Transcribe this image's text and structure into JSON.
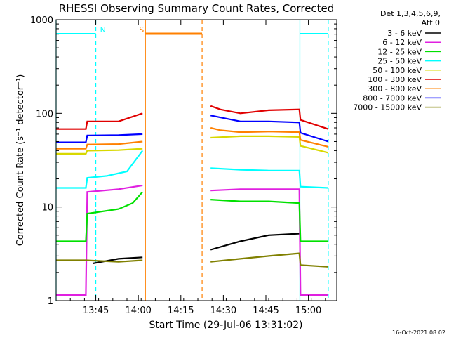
{
  "chart_data": {
    "type": "line",
    "title": "RHESSI Observing Summary Count Rates, Corrected",
    "xlabel": "Start Time (29-Jul-06 13:31:02)",
    "ylabel": "Corrected Count Rate (s⁻¹ detector⁻¹)",
    "x_unit": "minutes after 13:31:02",
    "xlim": [
      "13:31",
      "15:10"
    ],
    "ylim": [
      1,
      1000
    ],
    "y_scale": "log",
    "x_ticks": [
      "13:45",
      "14:00",
      "14:15",
      "14:30",
      "14:45",
      "15:00"
    ],
    "y_ticks": [
      "1",
      "10",
      "100",
      "1000"
    ],
    "grid": false,
    "legend_placement": "right-outside",
    "legend_header": [
      "Det 1,3,4,5,6,9,",
      "Att 0"
    ],
    "series": [
      {
        "name": "3 - 6 keV",
        "color": "#000000",
        "pre": [
          [
            13.0,
            2.5
          ],
          [
            22.0,
            2.8
          ],
          [
            30.5,
            2.9
          ]
        ],
        "post": [
          [
            54.5,
            3.5
          ],
          [
            65.0,
            4.3
          ],
          [
            75.0,
            5.0
          ],
          [
            86.0,
            5.2
          ]
        ]
      },
      {
        "name": "6 - 12 keV",
        "color": "#e020e0",
        "pre": [
          [
            0,
            1.15
          ],
          [
            10.5,
            1.15
          ],
          [
            11.0,
            14.5
          ],
          [
            22.0,
            15.5
          ],
          [
            30.5,
            17.0
          ]
        ],
        "post": [
          [
            54.5,
            15.0
          ],
          [
            65.0,
            15.5
          ],
          [
            75.0,
            15.5
          ],
          [
            85.8,
            15.5
          ],
          [
            86.2,
            1.15
          ],
          [
            96.0,
            1.15
          ]
        ]
      },
      {
        "name": "12 - 25 keV",
        "color": "#00e000",
        "pre": [
          [
            0,
            4.3
          ],
          [
            10.5,
            4.3
          ],
          [
            11.0,
            8.5
          ],
          [
            22.0,
            9.5
          ],
          [
            27.0,
            11.0
          ],
          [
            30.5,
            14.5
          ]
        ],
        "post": [
          [
            54.5,
            12.0
          ],
          [
            65.0,
            11.5
          ],
          [
            75.0,
            11.5
          ],
          [
            85.8,
            11.0
          ],
          [
            86.2,
            4.3
          ],
          [
            96.0,
            4.3
          ]
        ]
      },
      {
        "name": "25 - 50 keV",
        "color": "#00ffff",
        "pre": [
          [
            0,
            16.0
          ],
          [
            10.5,
            16.0
          ],
          [
            11.0,
            20.5
          ],
          [
            18.0,
            21.5
          ],
          [
            25.0,
            24.0
          ],
          [
            30.5,
            40.0
          ]
        ],
        "post": [
          [
            54.5,
            26.0
          ],
          [
            65.0,
            25.0
          ],
          [
            75.0,
            24.5
          ],
          [
            85.8,
            24.5
          ],
          [
            86.2,
            16.5
          ],
          [
            96.0,
            16.0
          ]
        ]
      },
      {
        "name": "50 - 100 keV",
        "color": "#d8d800",
        "pre": [
          [
            0,
            37.0
          ],
          [
            10.5,
            37.0
          ],
          [
            11.0,
            40.0
          ],
          [
            22.0,
            40.5
          ],
          [
            30.5,
            42.0
          ]
        ],
        "post": [
          [
            54.5,
            55.0
          ],
          [
            65.0,
            57.0
          ],
          [
            75.0,
            57.0
          ],
          [
            85.8,
            56.0
          ],
          [
            86.2,
            45.0
          ],
          [
            96.0,
            38.0
          ]
        ]
      },
      {
        "name": "100 - 300 keV",
        "color": "#e00000",
        "pre": [
          [
            0,
            68.0
          ],
          [
            10.5,
            68.0
          ],
          [
            11.0,
            82.0
          ],
          [
            22.0,
            82.0
          ],
          [
            30.5,
            100.0
          ]
        ],
        "post": [
          [
            54.5,
            120.0
          ],
          [
            58.0,
            110.0
          ],
          [
            65.0,
            100.0
          ],
          [
            75.0,
            108.0
          ],
          [
            85.8,
            110.0
          ],
          [
            86.2,
            85.0
          ],
          [
            96.0,
            68.0
          ]
        ]
      },
      {
        "name": "300 - 800 keV",
        "color": "#ff8000",
        "pre": [
          [
            0,
            42.0
          ],
          [
            10.5,
            42.0
          ],
          [
            11.0,
            46.5
          ],
          [
            22.0,
            47.0
          ],
          [
            30.5,
            50.0
          ]
        ],
        "post": [
          [
            54.5,
            70.0
          ],
          [
            58.0,
            66.0
          ],
          [
            65.0,
            63.0
          ],
          [
            75.0,
            64.0
          ],
          [
            85.8,
            63.0
          ],
          [
            86.2,
            52.0
          ],
          [
            96.0,
            44.0
          ]
        ]
      },
      {
        "name": "800 - 7000 keV",
        "color": "#0000ff",
        "pre": [
          [
            0,
            49.0
          ],
          [
            10.5,
            49.0
          ],
          [
            11.0,
            58.0
          ],
          [
            22.0,
            58.5
          ],
          [
            30.5,
            60.0
          ]
        ],
        "post": [
          [
            54.5,
            95.0
          ],
          [
            65.0,
            82.0
          ],
          [
            75.0,
            82.0
          ],
          [
            85.8,
            80.0
          ],
          [
            86.2,
            62.0
          ],
          [
            96.0,
            50.0
          ]
        ]
      },
      {
        "name": "7000 - 15000 keV",
        "color": "#808000",
        "pre": [
          [
            0,
            2.7
          ],
          [
            10.5,
            2.7
          ],
          [
            22.0,
            2.6
          ],
          [
            30.5,
            2.7
          ]
        ],
        "post": [
          [
            54.5,
            2.6
          ],
          [
            65.0,
            2.8
          ],
          [
            75.0,
            3.0
          ],
          [
            85.8,
            3.2
          ],
          [
            86.2,
            2.4
          ],
          [
            96.0,
            2.3
          ]
        ]
      }
    ],
    "annotations": [
      {
        "label": "N",
        "color": "#00ffff",
        "kind": "night",
        "intervals": [
          [
            0,
            14.0
          ],
          [
            86.0,
            96.0
          ]
        ]
      },
      {
        "label": "S",
        "color": "#ff8000",
        "kind": "saa",
        "intervals": [
          [
            31.5,
            51.5
          ]
        ]
      }
    ],
    "timestamp": "16-Oct-2021 08:02"
  }
}
